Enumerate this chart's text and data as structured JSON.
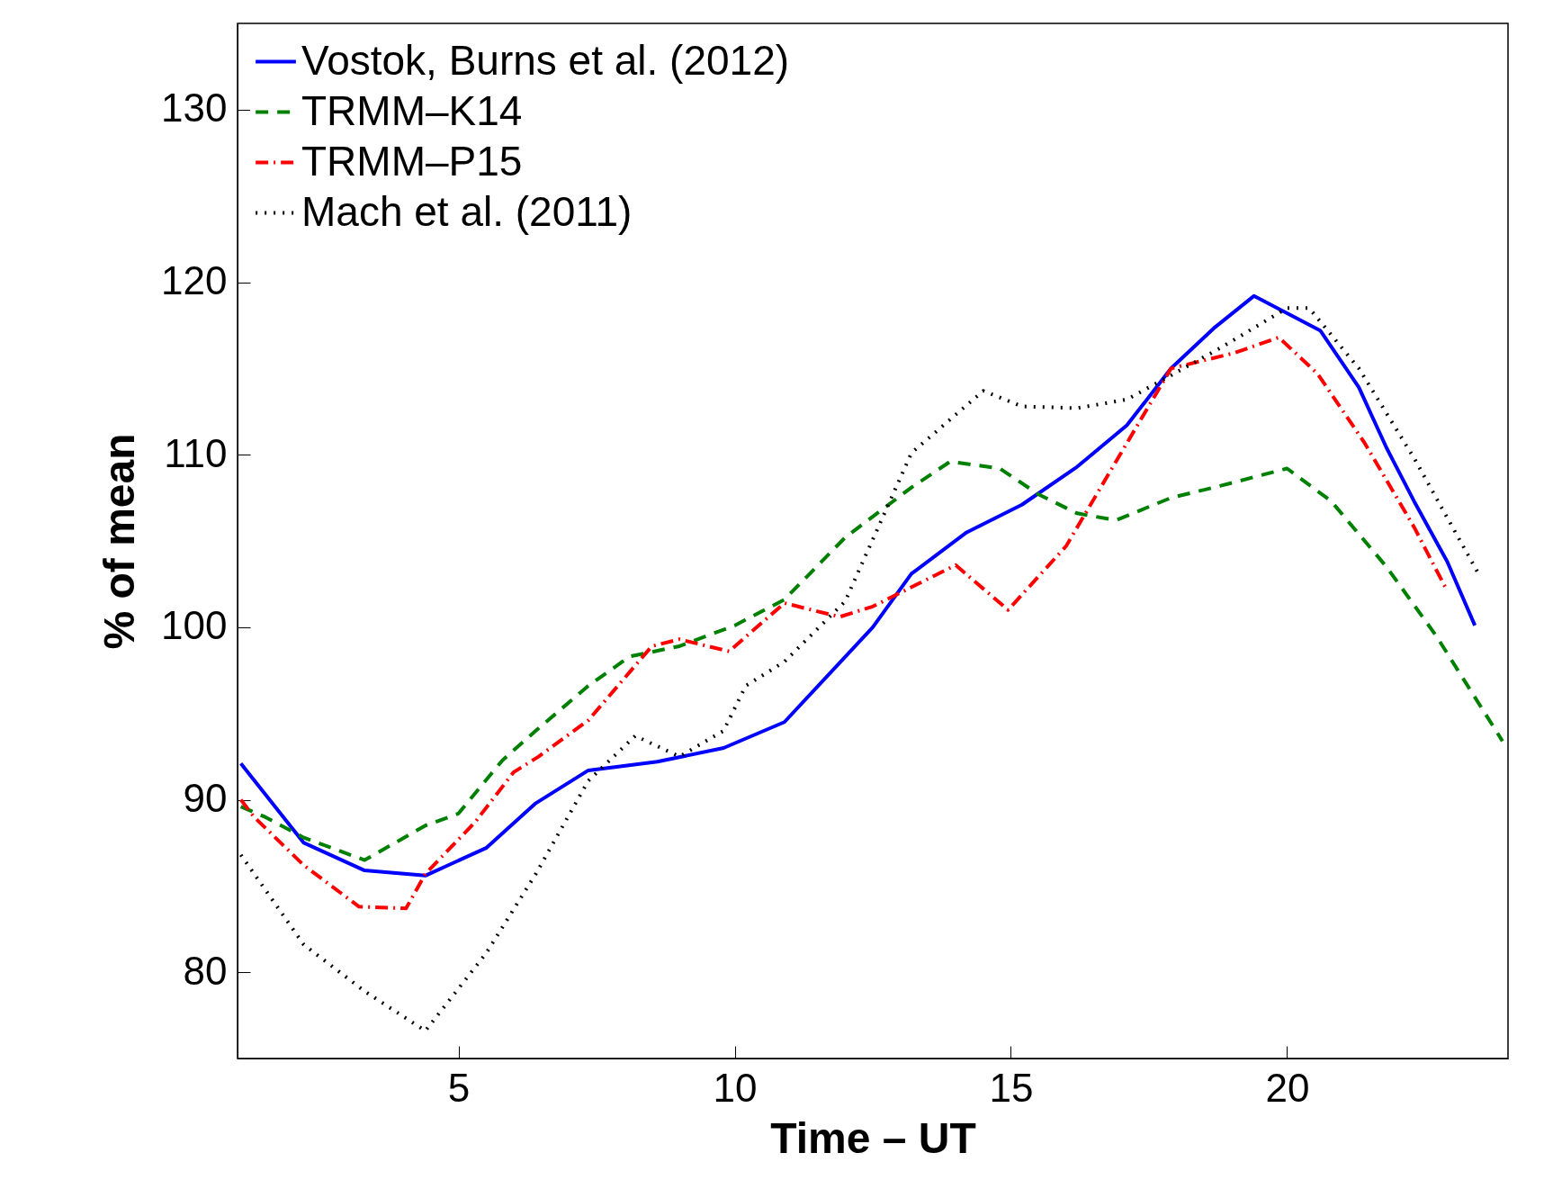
{
  "chart_data": {
    "type": "line",
    "xlabel": "Time – UT",
    "ylabel": "% of mean",
    "xlim": [
      1,
      24
    ],
    "ylim": [
      75,
      135
    ],
    "xticks": [
      5,
      10,
      15,
      20
    ],
    "yticks": [
      80,
      90,
      100,
      110,
      120,
      130
    ],
    "grid": false,
    "legend": "top left",
    "marker": "none",
    "series": [
      {
        "name": "Vostok, Burns et al. (2012)",
        "color": "#0000ff",
        "line_style": "solid",
        "x": [
          1.06,
          2.2,
          3.3,
          4.4,
          5.5,
          6.4,
          7.35,
          8.6,
          9.8,
          10.9,
          12.5,
          13.2,
          14.2,
          15.2,
          16.2,
          17.1,
          17.9,
          18.7,
          19.4,
          20.6,
          21.3,
          21.8,
          22.3,
          22.9,
          23.4
        ],
        "values": [
          92.1,
          87.5,
          85.9,
          85.6,
          87.2,
          89.8,
          91.7,
          92.2,
          93.0,
          94.5,
          100,
          103.1,
          105.5,
          107.1,
          109.3,
          111.7,
          115.0,
          117.4,
          119.2,
          117.2,
          113.9,
          110.4,
          107.3,
          103.8,
          100.1
        ]
      },
      {
        "name": "TRMM–K14",
        "color": "#008000",
        "line_style": "dashed",
        "x": [
          1.06,
          1.5,
          2.2,
          3.3,
          4.4,
          5,
          5.8,
          6.4,
          7.35,
          8.1,
          9.0,
          10,
          10.9,
          12.0,
          13.2,
          13.9,
          14.8,
          15.5,
          16.2,
          16.9,
          17.9,
          18.8,
          20,
          20.8,
          21.8,
          22.7,
          23.9
        ],
        "values": [
          89.6,
          89.0,
          87.8,
          86.5,
          88.5,
          89.2,
          92.3,
          94.0,
          96.6,
          98.3,
          98.9,
          100.1,
          101.6,
          105.2,
          108.1,
          109.6,
          109.2,
          107.7,
          106.6,
          106.2,
          107.5,
          108.2,
          109.2,
          107.3,
          103.5,
          99.5,
          93.4
        ]
      },
      {
        "name": "TRMM–P15",
        "color": "#ff0000",
        "line_style": "dashdot",
        "x": [
          1.06,
          1.3,
          2.2,
          3.2,
          4.05,
          4.4,
          5.3,
          6.0,
          6.45,
          7.35,
          8.5,
          9.0,
          9.9,
          10.9,
          11.9,
          12.5,
          14.0,
          14.95,
          16.0,
          17.05,
          17.9,
          19.05,
          19.85,
          20.55,
          21.4,
          22.3,
          22.9
        ],
        "values": [
          90.0,
          89.0,
          86.2,
          83.8,
          83.7,
          85.7,
          88.7,
          91.6,
          92.5,
          94.6,
          98.9,
          99.3,
          98.6,
          101.4,
          100.6,
          101.2,
          103.6,
          101.0,
          104.7,
          110.4,
          115.0,
          115.9,
          116.8,
          114.7,
          110.7,
          105.8,
          102.1
        ]
      },
      {
        "name": "Mach et al. (2011)",
        "color": "#000000",
        "line_style": "dotted",
        "x": [
          1.06,
          2.2,
          3.3,
          4.4,
          5.5,
          6.4,
          7.35,
          8.2,
          9.0,
          9.8,
          10.2,
          10.9,
          12.0,
          13.2,
          14.5,
          15.2,
          16.2,
          17.1,
          17.9,
          18.8,
          20,
          20.4,
          21.3,
          22.3,
          23.5
        ],
        "values": [
          86.8,
          81.6,
          78.9,
          76.6,
          81.1,
          85.7,
          91.1,
          93.7,
          92.5,
          94.0,
          96.6,
          98.0,
          101.5,
          110.1,
          113.7,
          112.8,
          112.7,
          113.2,
          114.6,
          116.2,
          118.5,
          118.5,
          115.0,
          109.8,
          102.9
        ]
      }
    ]
  }
}
